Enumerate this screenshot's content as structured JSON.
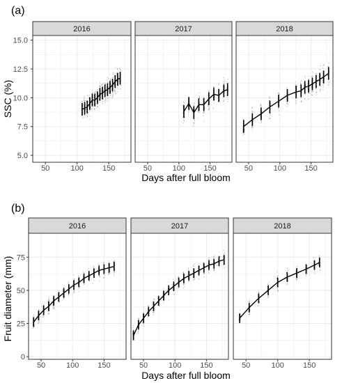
{
  "figure": {
    "panels": [
      {
        "tag": "(a)",
        "ylabel": "SSC (%)",
        "xlabel": "Days after full bloom",
        "x_ticks": [
          50,
          100,
          150
        ],
        "y_ticks": [
          "5.0",
          "7.5",
          "10.0",
          "12.5",
          "15.0"
        ],
        "y_tick_values": [
          5.0,
          7.5,
          10.0,
          12.5,
          15.0
        ]
      },
      {
        "tag": "(b)",
        "ylabel": "Fruit diameter (mm)",
        "xlabel": "Days after full bloom",
        "x_ticks": [
          50,
          100,
          150
        ],
        "y_ticks": [
          "0",
          "25",
          "50",
          "75"
        ],
        "y_tick_values": [
          0,
          25,
          50,
          75
        ]
      }
    ],
    "colors": {
      "strip": "#d9d9d9",
      "border": "#333333",
      "grid": "#ebebeb",
      "points": "#8a8a8a",
      "line": "#000000"
    }
  },
  "chart_data": [
    {
      "type": "scatter",
      "ylabel": "SSC (%)",
      "xlabel": "Days after full bloom",
      "xlim": [
        30,
        185
      ],
      "ylim": [
        4.4,
        15.4
      ],
      "facets": [
        {
          "name": "2016",
          "x": [
            108,
            112,
            116,
            120,
            124,
            128,
            132,
            136,
            140,
            144,
            148,
            152,
            156,
            160,
            164,
            168
          ],
          "y": [
            9.0,
            9.1,
            9.2,
            9.5,
            9.8,
            9.8,
            10.0,
            10.3,
            10.4,
            10.6,
            10.7,
            10.9,
            11.1,
            11.4,
            11.6,
            11.7
          ]
        },
        {
          "name": "2017",
          "x": [
            108,
            116,
            124,
            132,
            140,
            148,
            156,
            164,
            172,
            178
          ],
          "y": [
            8.8,
            9.5,
            8.7,
            9.4,
            9.4,
            9.9,
            10.3,
            10.2,
            10.6,
            10.7
          ]
        },
        {
          "name": "2018",
          "x": [
            42,
            56,
            70,
            84,
            98,
            112,
            126,
            134,
            140,
            146,
            152,
            158,
            164,
            170,
            178
          ],
          "y": [
            7.5,
            8.1,
            8.6,
            9.2,
            9.7,
            10.2,
            10.5,
            10.6,
            10.9,
            11.0,
            11.2,
            11.4,
            11.6,
            11.8,
            12.1
          ]
        }
      ]
    },
    {
      "type": "scatter",
      "ylabel": "Fruit diameter (mm)",
      "xlabel": "Days after full bloom",
      "xlim": [
        30,
        185
      ],
      "ylim": [
        -2,
        93
      ],
      "facets": [
        {
          "name": "2016",
          "x": [
            38,
            46,
            54,
            62,
            70,
            78,
            86,
            94,
            102,
            110,
            118,
            126,
            134,
            142,
            150,
            158,
            166
          ],
          "y": [
            26,
            31,
            35,
            38,
            42,
            45,
            48,
            51,
            54,
            56,
            59,
            61,
            63,
            65,
            66,
            67,
            68
          ]
        },
        {
          "name": "2017",
          "x": [
            34,
            42,
            50,
            58,
            66,
            74,
            82,
            90,
            98,
            106,
            114,
            122,
            130,
            138,
            146,
            154,
            162,
            170,
            178
          ],
          "y": [
            16,
            24,
            29,
            34,
            38,
            42,
            46,
            50,
            53,
            56,
            59,
            61,
            63,
            65,
            67,
            69,
            70,
            72,
            73
          ]
        },
        {
          "name": "2018",
          "x": [
            40,
            55,
            70,
            85,
            100,
            115,
            130,
            145,
            158,
            166
          ],
          "y": [
            29,
            37,
            44,
            50,
            56,
            60,
            63,
            66,
            69,
            71
          ]
        }
      ]
    }
  ]
}
